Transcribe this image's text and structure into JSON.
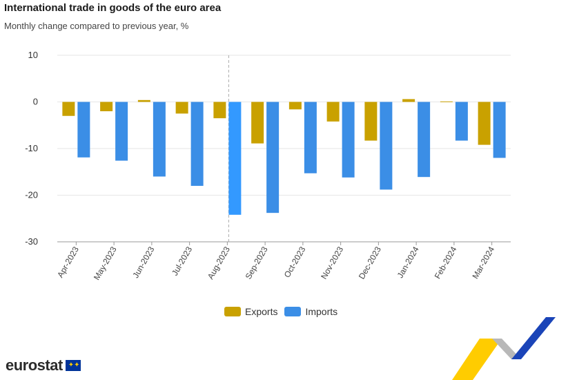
{
  "header": {
    "title": "International trade in goods of the euro area",
    "subtitle": "Monthly change compared to previous year, %"
  },
  "legend": {
    "exports_label": "Exports",
    "imports_label": "Imports"
  },
  "brand": {
    "logo_text": "eurostat"
  },
  "colors": {
    "exports": "#c9a100",
    "imports": "#3b8ee6",
    "imports_highlight": "#3399ff",
    "grid": "#e6e6e6",
    "axis": "#999999"
  },
  "chart_data": {
    "type": "bar",
    "title": "International trade in goods of the euro area",
    "subtitle": "Monthly change compared to previous year, %",
    "categories": [
      "Apr-2023",
      "May-2023",
      "Jun-2023",
      "Jul-2023",
      "Aug-2023",
      "Sep-2023",
      "Oct-2023",
      "Nov-2023",
      "Dec-2023",
      "Jan-2024",
      "Feb-2024",
      "Mar-2024"
    ],
    "series": [
      {
        "name": "Exports",
        "values": [
          -3.0,
          -2.0,
          0.4,
          -2.5,
          -3.5,
          -8.9,
          -1.6,
          -4.2,
          -8.3,
          0.6,
          0.1,
          -9.2
        ]
      },
      {
        "name": "Imports",
        "values": [
          -11.9,
          -12.6,
          -16.0,
          -18.0,
          -24.2,
          -23.8,
          -15.3,
          -16.2,
          -18.8,
          -16.1,
          -8.3,
          -12.0
        ]
      }
    ],
    "ylim": [
      -30,
      10
    ],
    "yticks": [
      10,
      0,
      -10,
      -20,
      -30
    ],
    "grid": true,
    "legend_position": "bottom",
    "highlighted_category": "Aug-2023"
  }
}
